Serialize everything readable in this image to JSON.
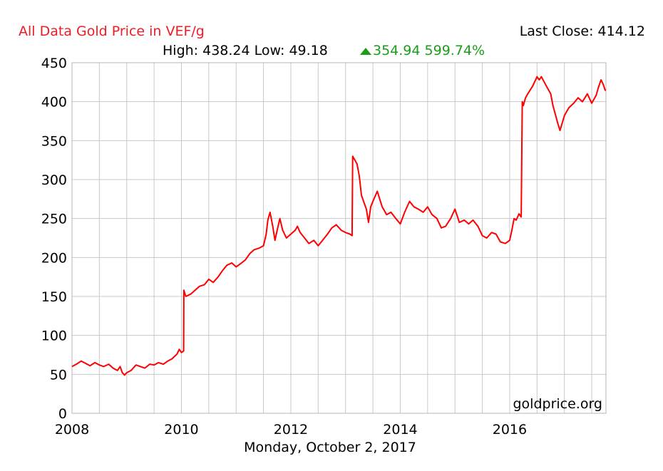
{
  "header": {
    "title": "All Data Gold Price in VEF/g",
    "last_close_label": "Last Close: 414.12",
    "high_low": "High: 438.24 Low: 49.18",
    "change": "354.94 599.74%",
    "watermark": "goldprice.org",
    "date_label": "Monday, October 2, 2017"
  },
  "colors": {
    "title": "#ee1c25",
    "line": "#ff0000",
    "change": "#1a9e1a",
    "grid": "#c8c8c8"
  },
  "chart_data": {
    "type": "line",
    "title": "All Data Gold Price in VEF/g",
    "xlabel": "",
    "ylabel": "",
    "xlim": [
      2008.0,
      2017.76
    ],
    "ylim": [
      0,
      450
    ],
    "y_ticks": [
      0,
      50,
      100,
      150,
      200,
      250,
      300,
      350,
      400,
      450
    ],
    "x_ticks": [
      2008,
      2010,
      2012,
      2014,
      2016
    ],
    "x_tick_labels": [
      "2008",
      "2010",
      "2012",
      "2014",
      "2016"
    ],
    "grid": true,
    "series": [
      {
        "name": "",
        "points": [
          [
            2008.0,
            60
          ],
          [
            2008.08,
            63
          ],
          [
            2008.17,
            67
          ],
          [
            2008.25,
            64
          ],
          [
            2008.33,
            61
          ],
          [
            2008.42,
            65
          ],
          [
            2008.5,
            62
          ],
          [
            2008.58,
            60
          ],
          [
            2008.67,
            63
          ],
          [
            2008.75,
            58
          ],
          [
            2008.83,
            55
          ],
          [
            2008.88,
            60
          ],
          [
            2008.92,
            52
          ],
          [
            2008.96,
            49
          ],
          [
            2009.0,
            52
          ],
          [
            2009.08,
            55
          ],
          [
            2009.17,
            62
          ],
          [
            2009.25,
            60
          ],
          [
            2009.33,
            58
          ],
          [
            2009.42,
            63
          ],
          [
            2009.5,
            62
          ],
          [
            2009.58,
            65
          ],
          [
            2009.67,
            63
          ],
          [
            2009.75,
            67
          ],
          [
            2009.83,
            70
          ],
          [
            2009.92,
            76
          ],
          [
            2009.96,
            82
          ],
          [
            2010.0,
            78
          ],
          [
            2010.04,
            80
          ],
          [
            2010.045,
            158
          ],
          [
            2010.08,
            150
          ],
          [
            2010.17,
            153
          ],
          [
            2010.25,
            158
          ],
          [
            2010.33,
            163
          ],
          [
            2010.42,
            165
          ],
          [
            2010.5,
            172
          ],
          [
            2010.58,
            168
          ],
          [
            2010.67,
            175
          ],
          [
            2010.75,
            183
          ],
          [
            2010.83,
            190
          ],
          [
            2010.92,
            193
          ],
          [
            2011.0,
            188
          ],
          [
            2011.08,
            192
          ],
          [
            2011.17,
            197
          ],
          [
            2011.25,
            205
          ],
          [
            2011.33,
            210
          ],
          [
            2011.42,
            212
          ],
          [
            2011.5,
            215
          ],
          [
            2011.55,
            230
          ],
          [
            2011.58,
            248
          ],
          [
            2011.62,
            258
          ],
          [
            2011.67,
            240
          ],
          [
            2011.71,
            222
          ],
          [
            2011.75,
            235
          ],
          [
            2011.8,
            250
          ],
          [
            2011.85,
            235
          ],
          [
            2011.92,
            225
          ],
          [
            2012.0,
            230
          ],
          [
            2012.08,
            235
          ],
          [
            2012.12,
            240
          ],
          [
            2012.17,
            232
          ],
          [
            2012.25,
            225
          ],
          [
            2012.33,
            218
          ],
          [
            2012.42,
            222
          ],
          [
            2012.5,
            215
          ],
          [
            2012.58,
            222
          ],
          [
            2012.67,
            230
          ],
          [
            2012.75,
            238
          ],
          [
            2012.83,
            242
          ],
          [
            2012.92,
            235
          ],
          [
            2013.0,
            232
          ],
          [
            2013.08,
            230
          ],
          [
            2013.12,
            228
          ],
          [
            2013.13,
            330
          ],
          [
            2013.17,
            325
          ],
          [
            2013.21,
            320
          ],
          [
            2013.25,
            305
          ],
          [
            2013.29,
            280
          ],
          [
            2013.33,
            272
          ],
          [
            2013.38,
            262
          ],
          [
            2013.42,
            245
          ],
          [
            2013.46,
            265
          ],
          [
            2013.5,
            272
          ],
          [
            2013.58,
            285
          ],
          [
            2013.67,
            265
          ],
          [
            2013.75,
            255
          ],
          [
            2013.83,
            258
          ],
          [
            2013.92,
            250
          ],
          [
            2014.0,
            243
          ],
          [
            2014.08,
            258
          ],
          [
            2014.17,
            272
          ],
          [
            2014.25,
            265
          ],
          [
            2014.33,
            262
          ],
          [
            2014.42,
            258
          ],
          [
            2014.5,
            265
          ],
          [
            2014.58,
            255
          ],
          [
            2014.67,
            250
          ],
          [
            2014.75,
            238
          ],
          [
            2014.83,
            240
          ],
          [
            2014.92,
            250
          ],
          [
            2015.0,
            262
          ],
          [
            2015.08,
            245
          ],
          [
            2015.17,
            248
          ],
          [
            2015.25,
            243
          ],
          [
            2015.33,
            248
          ],
          [
            2015.42,
            240
          ],
          [
            2015.5,
            228
          ],
          [
            2015.58,
            225
          ],
          [
            2015.67,
            232
          ],
          [
            2015.75,
            230
          ],
          [
            2015.83,
            220
          ],
          [
            2015.92,
            218
          ],
          [
            2016.0,
            222
          ],
          [
            2016.04,
            235
          ],
          [
            2016.08,
            250
          ],
          [
            2016.12,
            248
          ],
          [
            2016.17,
            256
          ],
          [
            2016.21,
            252
          ],
          [
            2016.23,
            400
          ],
          [
            2016.25,
            395
          ],
          [
            2016.29,
            405
          ],
          [
            2016.33,
            410
          ],
          [
            2016.42,
            420
          ],
          [
            2016.5,
            432
          ],
          [
            2016.54,
            428
          ],
          [
            2016.58,
            432
          ],
          [
            2016.67,
            420
          ],
          [
            2016.75,
            410
          ],
          [
            2016.79,
            395
          ],
          [
            2016.83,
            385
          ],
          [
            2016.88,
            372
          ],
          [
            2016.92,
            363
          ],
          [
            2017.0,
            382
          ],
          [
            2017.08,
            392
          ],
          [
            2017.17,
            398
          ],
          [
            2017.25,
            405
          ],
          [
            2017.33,
            400
          ],
          [
            2017.42,
            410
          ],
          [
            2017.5,
            398
          ],
          [
            2017.58,
            408
          ],
          [
            2017.62,
            418
          ],
          [
            2017.67,
            428
          ],
          [
            2017.71,
            422
          ],
          [
            2017.75,
            414
          ]
        ]
      }
    ]
  }
}
